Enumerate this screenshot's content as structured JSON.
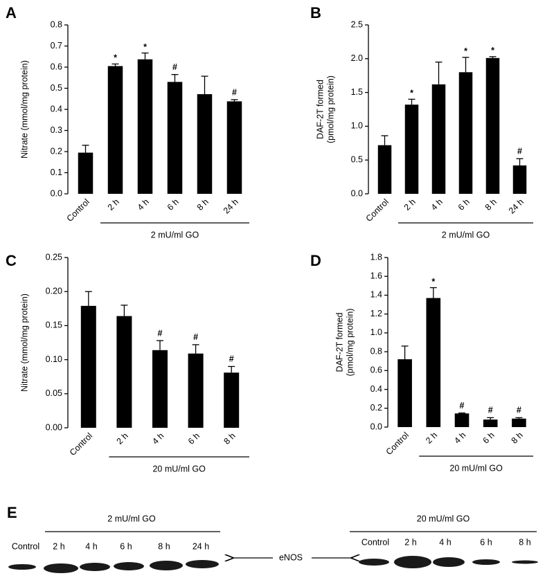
{
  "chart_data": [
    {
      "type": "bar",
      "panel_label": "A",
      "ylabel": [
        "Nitrate (mmol/mg protein)"
      ],
      "categories": [
        "Control",
        "2 h",
        "4 h",
        "6 h",
        "8 h",
        "24 h"
      ],
      "values": [
        0.195,
        0.605,
        0.637,
        0.53,
        0.472,
        0.438
      ],
      "errors": [
        0.035,
        0.01,
        0.03,
        0.035,
        0.085,
        0.008
      ],
      "annotations": [
        null,
        "*",
        "*",
        "#",
        null,
        "#"
      ],
      "group_label": "2 mU/ml GO",
      "color": "#000000",
      "ylim": [
        0,
        0.8
      ],
      "yticks": [
        {
          "value": 0,
          "label": "0.0"
        },
        0.1,
        0.2,
        0.3,
        0.4,
        0.5,
        0.6,
        0.7,
        0.8
      ]
    },
    {
      "type": "bar",
      "panel_label": "B",
      "ylabel": [
        "DAF-2T formed",
        "(pmol/mg protein)"
      ],
      "categories": [
        "Control",
        "2 h",
        "4 h",
        "6 h",
        "8 h",
        "24 h"
      ],
      "values": [
        0.72,
        1.32,
        1.62,
        1.8,
        2.01,
        0.42
      ],
      "errors": [
        0.14,
        0.08,
        0.33,
        0.22,
        0.02,
        0.1
      ],
      "annotations": [
        null,
        "*",
        null,
        "*",
        "*",
        "#"
      ],
      "group_label": "2 mU/ml GO",
      "color": "#000000",
      "ylim": [
        0,
        2.5
      ],
      "yticks": [
        {
          "value": 0,
          "label": "0.0"
        },
        0.5,
        {
          "value": 1,
          "label": "1.0"
        },
        1.5,
        {
          "value": 2,
          "label": "2.0"
        },
        2.5
      ]
    },
    {
      "type": "bar",
      "panel_label": "C",
      "ylabel": [
        "Nitrate (mmol/mg protein)"
      ],
      "categories": [
        "Control",
        "2 h",
        "4 h",
        "6 h",
        "8 h"
      ],
      "values": [
        0.179,
        0.164,
        0.114,
        0.109,
        0.081
      ],
      "errors": [
        0.021,
        0.016,
        0.014,
        0.013,
        0.009
      ],
      "annotations": [
        null,
        null,
        "#",
        "#",
        "#"
      ],
      "group_label": "20 mU/ml GO",
      "color": "#000000",
      "ylim": [
        0,
        0.25
      ],
      "yticks": [
        {
          "value": 0,
          "label": "0.00"
        },
        0.05,
        {
          "value": 0.1,
          "label": "0.10"
        },
        0.15,
        {
          "value": 0.2,
          "label": "0.20"
        },
        0.25
      ]
    },
    {
      "type": "bar",
      "panel_label": "D",
      "ylabel": [
        "DAF-2T formed",
        "(pmol/mg protein)"
      ],
      "categories": [
        "Control",
        "2 h",
        "4 h",
        "6 h",
        "8 h"
      ],
      "values": [
        0.72,
        1.37,
        0.145,
        0.08,
        0.09
      ],
      "errors": [
        0.14,
        0.11,
        0.005,
        0.02,
        0.01
      ],
      "annotations": [
        null,
        "*",
        "#",
        "#",
        "#"
      ],
      "group_label": "20 mU/ml GO",
      "color": "#000000",
      "ylim": [
        0,
        1.8
      ],
      "yticks": [
        {
          "value": 0,
          "label": "0.0"
        },
        0.2,
        0.4,
        0.6,
        0.8,
        {
          "value": 1,
          "label": "1.0"
        },
        1.2,
        1.4,
        1.6,
        1.8
      ]
    }
  ],
  "blot": {
    "panel_label": "E",
    "protein": "eNOS",
    "groups": [
      {
        "label": "2 mU/ml GO",
        "lanes": [
          "Control",
          "2 h",
          "4 h",
          "6 h",
          "8 h",
          "24 h"
        ]
      },
      {
        "label": "20 mU/ml GO",
        "lanes": [
          "Control",
          "2 h",
          "4 h",
          "6 h",
          "8 h"
        ]
      }
    ]
  }
}
